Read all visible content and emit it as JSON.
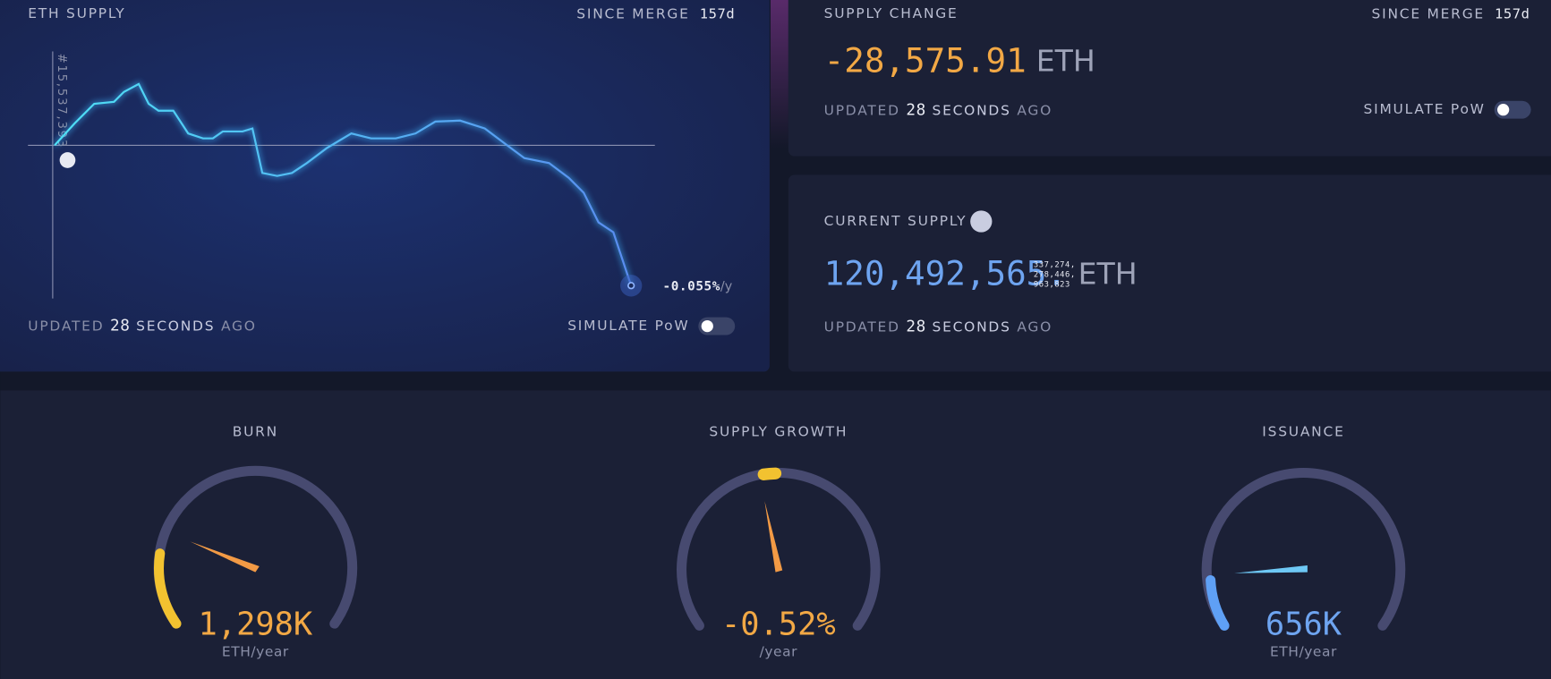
{
  "eth_supply": {
    "title": "ETH SUPPLY",
    "since_label": "SINCE MERGE",
    "since_value": "157d",
    "block_label": "#15,537,393",
    "rate": "-0.055%",
    "rate_unit": "/y",
    "updated": [
      "UPDATED",
      "28",
      "SECONDS",
      "AGO"
    ],
    "toggle_label": "SIMULATE PoW"
  },
  "supply_change": {
    "title": "SUPPLY CHANGE",
    "since_label": "SINCE MERGE",
    "since_value": "157d",
    "value": "-28,575.91",
    "unit": "ETH",
    "updated": [
      "UPDATED",
      "28",
      "SECONDS",
      "AGO"
    ],
    "toggle_label": "SIMULATE PoW"
  },
  "current_supply": {
    "title": "CURRENT SUPPLY",
    "value": "120,492,565.",
    "decimals": [
      "337,274,",
      "278,446,",
      "963,823"
    ],
    "unit": "ETH",
    "updated": [
      "UPDATED",
      "28",
      "SECONDS",
      "AGO"
    ]
  },
  "gauges": [
    {
      "title": "BURN",
      "value": "1,298K",
      "unit": "ETH/year"
    },
    {
      "title": "SUPPLY GROWTH",
      "value": "-0.52%",
      "unit": "/year"
    },
    {
      "title": "ISSUANCE",
      "value": "656K",
      "unit": "ETH/year"
    }
  ]
}
